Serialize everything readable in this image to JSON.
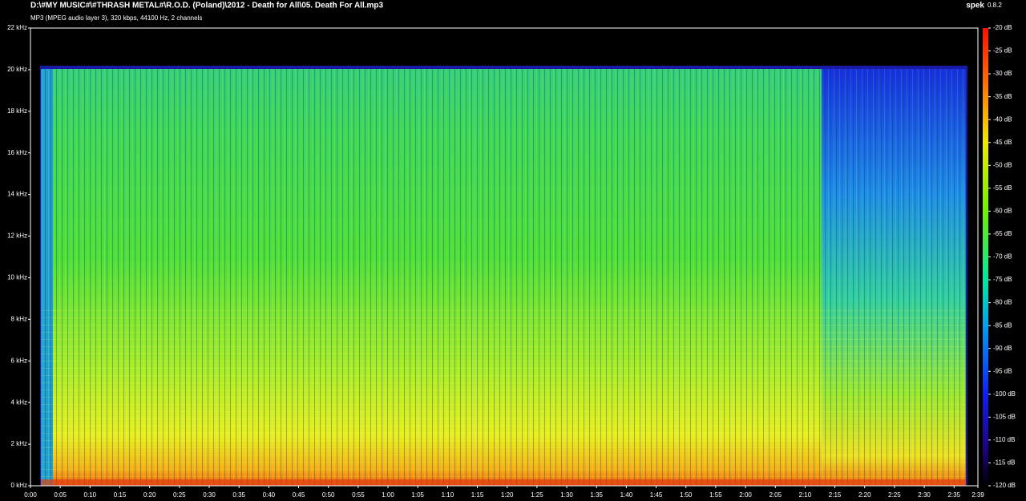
{
  "chart_data": {
    "type": "spectrogram",
    "title": "D:\\#MY MUSIC#\\#THRASH METAL#\\R.O.D. (Poland)\\2012 - Death for All\\05. Death For All.mp3",
    "subtitle": "MP3 (MPEG audio layer 3), 320 kbps, 44100 Hz, 2 channels",
    "app": "spek",
    "version": "0.8.2",
    "xlim": [
      0,
      159
    ],
    "xticks": [
      {
        "value": 0,
        "label": "0:00"
      },
      {
        "value": 5,
        "label": "0:05"
      },
      {
        "value": 10,
        "label": "0:10"
      },
      {
        "value": 15,
        "label": "0:15"
      },
      {
        "value": 20,
        "label": "0:20"
      },
      {
        "value": 25,
        "label": "0:25"
      },
      {
        "value": 30,
        "label": "0:30"
      },
      {
        "value": 35,
        "label": "0:35"
      },
      {
        "value": 40,
        "label": "0:40"
      },
      {
        "value": 45,
        "label": "0:45"
      },
      {
        "value": 50,
        "label": "0:50"
      },
      {
        "value": 55,
        "label": "0:55"
      },
      {
        "value": 60,
        "label": "1:00"
      },
      {
        "value": 65,
        "label": "1:05"
      },
      {
        "value": 70,
        "label": "1:10"
      },
      {
        "value": 75,
        "label": "1:15"
      },
      {
        "value": 80,
        "label": "1:20"
      },
      {
        "value": 85,
        "label": "1:25"
      },
      {
        "value": 90,
        "label": "1:30"
      },
      {
        "value": 95,
        "label": "1:35"
      },
      {
        "value": 100,
        "label": "1:40"
      },
      {
        "value": 105,
        "label": "1:45"
      },
      {
        "value": 110,
        "label": "1:50"
      },
      {
        "value": 115,
        "label": "1:55"
      },
      {
        "value": 120,
        "label": "2:00"
      },
      {
        "value": 125,
        "label": "2:05"
      },
      {
        "value": 130,
        "label": "2:10"
      },
      {
        "value": 135,
        "label": "2:15"
      },
      {
        "value": 140,
        "label": "2:20"
      },
      {
        "value": 145,
        "label": "2:25"
      },
      {
        "value": 150,
        "label": "2:30"
      },
      {
        "value": 155,
        "label": "2:35"
      },
      {
        "value": 159,
        "label": "2:39"
      }
    ],
    "ylim": [
      0,
      22
    ],
    "yticks": [
      {
        "value": 0,
        "label": "0 kHz"
      },
      {
        "value": 2,
        "label": "2 kHz"
      },
      {
        "value": 4,
        "label": "4 kHz"
      },
      {
        "value": 6,
        "label": "6 kHz"
      },
      {
        "value": 8,
        "label": "8 kHz"
      },
      {
        "value": 10,
        "label": "10 kHz"
      },
      {
        "value": 12,
        "label": "12 kHz"
      },
      {
        "value": 14,
        "label": "14 kHz"
      },
      {
        "value": 16,
        "label": "16 kHz"
      },
      {
        "value": 18,
        "label": "18 kHz"
      },
      {
        "value": 20,
        "label": "20 kHz"
      },
      {
        "value": 22,
        "label": "22 kHz"
      }
    ],
    "zlim": [
      -120,
      -20
    ],
    "zticks": [
      {
        "value": -20,
        "label": "-20 dB"
      },
      {
        "value": -25,
        "label": "-25 dB"
      },
      {
        "value": -30,
        "label": "-30 dB"
      },
      {
        "value": -35,
        "label": "-35 dB"
      },
      {
        "value": -40,
        "label": "-40 dB"
      },
      {
        "value": -45,
        "label": "-45 dB"
      },
      {
        "value": -50,
        "label": "-50 dB"
      },
      {
        "value": -55,
        "label": "-55 dB"
      },
      {
        "value": -60,
        "label": "-60 dB"
      },
      {
        "value": -65,
        "label": "-65 dB"
      },
      {
        "value": -70,
        "label": "-70 dB"
      },
      {
        "value": -75,
        "label": "-75 dB"
      },
      {
        "value": -80,
        "label": "-80 dB"
      },
      {
        "value": -85,
        "label": "-85 dB"
      },
      {
        "value": -90,
        "label": "-90 dB"
      },
      {
        "value": -95,
        "label": "-95 dB"
      },
      {
        "value": -100,
        "label": "-100 dB"
      },
      {
        "value": -105,
        "label": "-105 dB"
      },
      {
        "value": -110,
        "label": "-110 dB"
      },
      {
        "value": -115,
        "label": "-115 dB"
      },
      {
        "value": -120,
        "label": "-120 dB"
      }
    ]
  }
}
